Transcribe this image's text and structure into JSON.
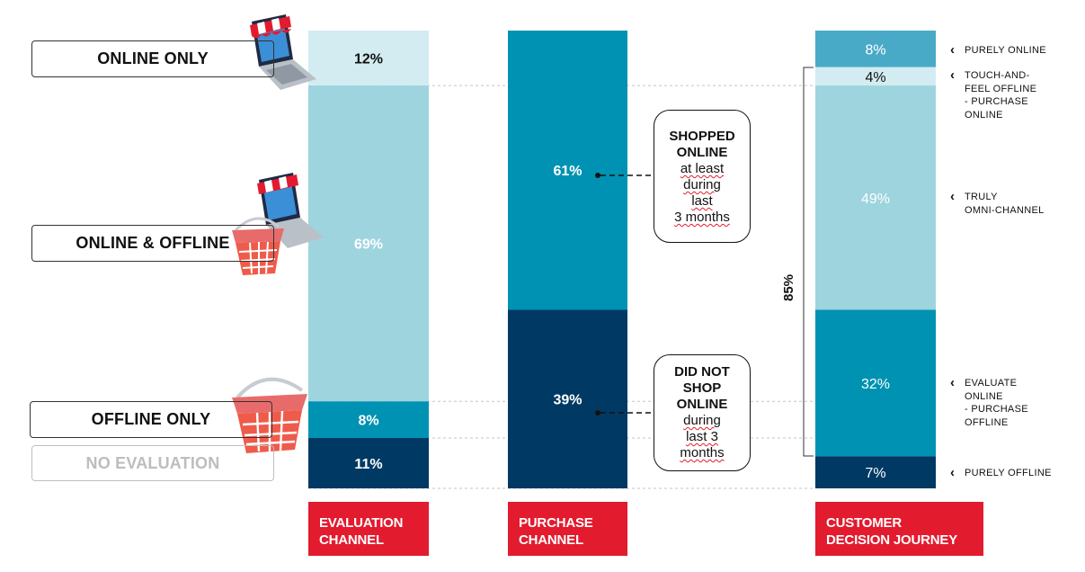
{
  "legend_boxes": {
    "online_only": "ONLINE ONLY",
    "online_offline": "ONLINE & OFFLINE",
    "offline_only": "OFFLINE ONLY",
    "no_evaluation": "NO EVALUATION"
  },
  "callouts": {
    "shopped": {
      "l1": "SHOPPED",
      "l2": "ONLINE",
      "l3": "at least",
      "l4": "during",
      "l5": "last",
      "l6": "3 months"
    },
    "did_not": {
      "l1": "DID NOT",
      "l2": "SHOP",
      "l3": "ONLINE",
      "l4": "during",
      "l5": "last 3",
      "l6": "months"
    }
  },
  "right_labels": {
    "purely_online": "PURELY ONLINE",
    "touch_feel": [
      "TOUCH-AND-",
      "FEEL OFFLINE",
      "- PURCHASE",
      "ONLINE"
    ],
    "truly_omni": [
      "TRULY",
      "OMNI-CHANNEL"
    ],
    "evaluate_online": [
      "EVALUATE",
      "ONLINE",
      "- PURCHASE",
      "OFFLINE"
    ],
    "purely_offline": "PURELY OFFLINE"
  },
  "bracket_label": "85%",
  "colors": {
    "lightest": "#d3ecf1",
    "light": "#9ed4de",
    "mid": "#0092b3",
    "dark": "#003964",
    "top_cdj": "#49aac8",
    "accent": "#e31b2e"
  },
  "chart_data": {
    "type": "bar",
    "stacked": true,
    "categories": [
      "EVALUATION CHANNEL",
      "PURCHASE CHANNEL",
      "CUSTOMER DECISION JOURNEY"
    ],
    "ylim": [
      0,
      100
    ],
    "series": [
      {
        "category": "EVALUATION CHANNEL",
        "segments": [
          {
            "label": "12%",
            "value": 12,
            "color": "#d3ecf1",
            "text_color": "#111111"
          },
          {
            "label": "69%",
            "value": 69,
            "color": "#9ed4de",
            "text_color": "#ffffff"
          },
          {
            "label": "8%",
            "value": 8,
            "color": "#0092b3",
            "text_color": "#ffffff"
          },
          {
            "label": "11%",
            "value": 11,
            "color": "#003964",
            "text_color": "#ffffff"
          }
        ]
      },
      {
        "category": "PURCHASE CHANNEL",
        "segments": [
          {
            "label": "61%",
            "value": 61,
            "color": "#0092b3",
            "text_color": "#ffffff"
          },
          {
            "label": "39%",
            "value": 39,
            "color": "#003964",
            "text_color": "#ffffff"
          }
        ]
      },
      {
        "category": "CUSTOMER DECISION JOURNEY",
        "segments": [
          {
            "label": "8%",
            "value": 8,
            "color": "#49aac8",
            "text_color": "#ffffff"
          },
          {
            "label": "4%",
            "value": 4,
            "color": "#d3ecf1",
            "text_color": "#111111"
          },
          {
            "label": "49%",
            "value": 49,
            "color": "#9ed4de",
            "text_color": "#ffffff"
          },
          {
            "label": "32%",
            "value": 32,
            "color": "#0092b3",
            "text_color": "#ffffff"
          },
          {
            "label": "7%",
            "value": 7,
            "color": "#003964",
            "text_color": "#ffffff"
          }
        ]
      }
    ],
    "captions": [
      [
        "EVALUATION",
        "CHANNEL"
      ],
      [
        "PURCHASE",
        "CHANNEL"
      ],
      [
        "CUSTOMER",
        "DECISION JOURNEY"
      ]
    ]
  }
}
